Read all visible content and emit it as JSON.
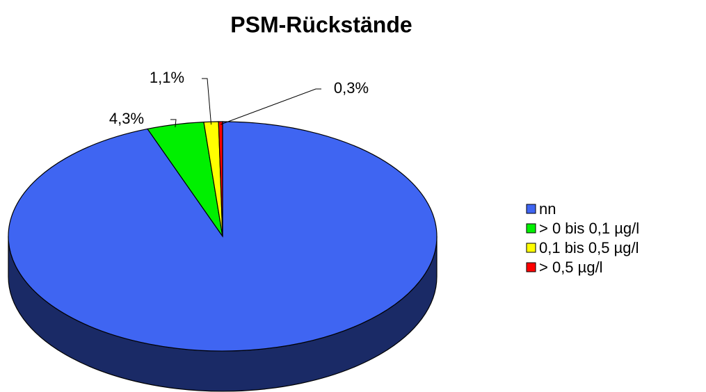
{
  "chart_data": {
    "type": "pie",
    "title": "PSM-Rückstände",
    "categories": [
      "nn",
      "> 0 bis 0,1 µg/l",
      "0,1 bis 0,5 µg/l",
      "> 0,5 µg/l"
    ],
    "values": [
      94.3,
      4.3,
      1.1,
      0.3
    ],
    "value_labels": [
      null,
      "4,3%",
      "1,1%",
      "0,3%"
    ],
    "colors": [
      "#3f65f2",
      "#00f000",
      "#ffff00",
      "#ff0000"
    ],
    "legend": "right"
  }
}
